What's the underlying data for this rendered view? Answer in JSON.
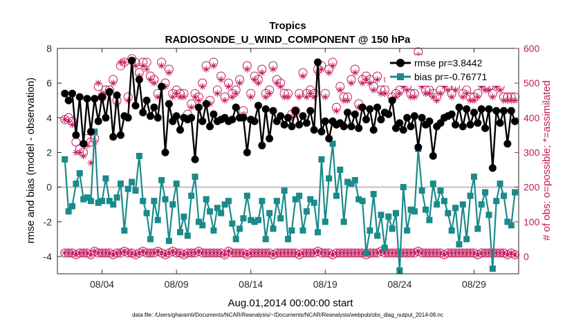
{
  "chart_data": {
    "type": "line",
    "title": "Tropics",
    "subtitle": "RADIOSONDE_U_WIND_COMPONENT @ 150 hPa",
    "xlabel": "Aug.01,2014 00:00:00 start",
    "ylabel": "rmse and bias (model - observation)",
    "y2label": "# of obs: o=possible; *=assimilated",
    "footer": "data file: /Users/gharamti/Documents/NCAR/Reanalysis/~/Documents/NCAR/Reanalysis/webpub/obs_diag_output_2014-08.nc",
    "xlim": [
      0.5,
      31.5
    ],
    "ylim": [
      -5,
      8
    ],
    "y2lim": [
      -50,
      600
    ],
    "xticks": [
      3.5,
      8.5,
      13.5,
      18.5,
      23.5,
      28.5
    ],
    "xtick_labels": [
      "08/04",
      "08/09",
      "08/14",
      "08/19",
      "08/24",
      "08/29"
    ],
    "yticks": [
      -4,
      -2,
      0,
      2,
      4,
      6,
      8
    ],
    "ytick_labels": [
      "-4",
      "-2",
      "0",
      "2",
      "4",
      "6",
      "8"
    ],
    "y2ticks": [
      0,
      100,
      200,
      300,
      400,
      500,
      600
    ],
    "y2tick_labels": [
      "0",
      "100",
      "200",
      "300",
      "400",
      "500",
      "600"
    ],
    "colors": {
      "rmse": "#000000",
      "bias": "#1a8a8a",
      "obs": "#c2185b",
      "zero_line": "#c8bcc4"
    },
    "legend": {
      "location": "top-right",
      "rmse_label": "rmse pr=3.8442",
      "bias_label": "bias pr=-0.76771"
    },
    "x": [
      1.0,
      1.25,
      1.5,
      1.75,
      2.0,
      2.25,
      2.5,
      2.75,
      3.0,
      3.25,
      3.5,
      3.75,
      4.0,
      4.25,
      4.5,
      4.75,
      5.0,
      5.25,
      5.5,
      5.75,
      6.0,
      6.25,
      6.5,
      6.75,
      7.0,
      7.25,
      7.5,
      7.75,
      8.0,
      8.25,
      8.5,
      8.75,
      9.0,
      9.25,
      9.5,
      9.75,
      10.0,
      10.25,
      10.5,
      10.75,
      11.0,
      11.25,
      11.5,
      11.75,
      12.0,
      12.25,
      12.5,
      12.75,
      13.0,
      13.25,
      13.5,
      13.75,
      14.0,
      14.25,
      14.5,
      14.75,
      15.0,
      15.25,
      15.5,
      15.75,
      16.0,
      16.25,
      16.5,
      16.75,
      17.0,
      17.25,
      17.5,
      17.75,
      18.0,
      18.25,
      18.5,
      18.75,
      19.0,
      19.25,
      19.5,
      19.75,
      20.0,
      20.25,
      20.5,
      20.75,
      21.0,
      21.25,
      21.5,
      21.75,
      22.0,
      22.25,
      22.5,
      22.75,
      23.0,
      23.25,
      23.5,
      23.75,
      24.0,
      24.25,
      24.5,
      24.75,
      25.0,
      25.25,
      25.5,
      25.75,
      26.0,
      26.25,
      26.5,
      26.75,
      27.0,
      27.25,
      27.5,
      27.75,
      28.0,
      28.25,
      28.5,
      28.75,
      29.0,
      29.25,
      29.5,
      29.75,
      30.0,
      30.25,
      30.5,
      30.75,
      31.0,
      31.25
    ],
    "rmse": [
      5.4,
      5.0,
      5.4,
      3.0,
      5.2,
      2.5,
      5.1,
      3.2,
      5.1,
      3.8,
      5.2,
      4.0,
      5.5,
      2.9,
      5.3,
      3.0,
      4.1,
      4.0,
      7.3,
      4.7,
      6.2,
      4.3,
      5.0,
      4.1,
      4.6,
      4.0,
      5.8,
      2.0,
      4.8,
      3.8,
      4.1,
      3.3,
      4.0,
      3.9,
      4.0,
      1.6,
      4.6,
      3.8,
      4.8,
      3.5,
      4.2,
      3.8,
      3.9,
      4.0,
      3.8,
      3.9,
      4.6,
      4.0,
      4.0,
      2.0,
      3.9,
      3.8,
      4.7,
      2.4,
      4.5,
      2.8,
      4.4,
      3.8,
      4.1,
      3.6,
      4.0,
      3.5,
      4.4,
      3.6,
      4.1,
      3.7,
      4.4,
      3.3,
      7.2,
      3.2,
      3.8,
      2.8,
      3.8,
      3.6,
      3.7,
      3.5,
      4.3,
      3.5,
      4.2,
      3.4,
      4.6,
      3.9,
      4.5,
      3.3,
      4.6,
      3.9,
      4.3,
      4.2,
      5.0,
      3.4,
      3.7,
      3.3,
      4.0,
      3.5,
      4.1,
      2.3,
      4.0,
      3.6,
      3.8,
      1.8,
      3.5,
      3.7,
      4.0,
      4.1,
      4.2,
      3.6,
      4.6,
      3.5,
      4.5,
      3.6,
      4.3,
      3.7,
      4.5,
      3.4,
      4.5,
      1.1,
      4.4,
      3.7,
      4.4,
      2.5,
      4.4,
      3.8,
      4.3,
      2.5
    ],
    "bias": [
      1.6,
      -1.4,
      -1.1,
      0.2,
      0.8,
      -0.7,
      -0.6,
      -0.8,
      3.2,
      -0.9,
      -0.8,
      0.5,
      -0.8,
      -1.0,
      -0.6,
      0.2,
      -2.5,
      -0.1,
      0.3,
      -0.2,
      1.8,
      -0.8,
      -1.5,
      -3.0,
      -0.8,
      -1.9,
      0.4,
      -0.7,
      -3.1,
      -1.0,
      0.2,
      -2.6,
      -1.7,
      -2.8,
      -0.5,
      0.6,
      -2.0,
      -2.2,
      -0.7,
      -1.4,
      -2.5,
      -1.2,
      -1.5,
      -1.0,
      -0.8,
      -2.1,
      -3.0,
      -2.4,
      -1.8,
      -0.5,
      -1.9,
      -2.0,
      -1.9,
      -0.8,
      -3.0,
      -1.5,
      -2.4,
      -0.8,
      -1.8,
      -0.2,
      -3.0,
      -2.5,
      -0.7,
      -0.5,
      -2.5,
      -1.4,
      -0.7,
      -0.9,
      -2.6,
      1.6,
      -2.0,
      0.5,
      2.5,
      -0.5,
      1.0,
      -2.0,
      0.3,
      0.2,
      0.4,
      -0.7,
      -0.8,
      -3.8,
      -2.5,
      -0.4,
      -2.8,
      -1.6,
      -3.5,
      -1.7,
      -2.4,
      -1.5,
      -4.8,
      0.0,
      -2.5,
      -1.3,
      -1.4,
      2.2,
      -0.2,
      -1.3,
      -1.9,
      0.2,
      -1.0,
      -0.2,
      -0.8,
      -1.5,
      -2.5,
      -1.2,
      -3.3,
      -1.0,
      -3.0,
      -0.5,
      0.6,
      -2.4,
      -1.0,
      -0.3,
      -1.6,
      -4.7,
      -0.8,
      0.2,
      -0.5,
      -2.0,
      -2.2,
      -0.3,
      0.2,
      0.4
    ],
    "possible": [
      395,
      400,
      390,
      330,
      310,
      300,
      340,
      330,
      340,
      490,
      460,
      480,
      480,
      510,
      450,
      550,
      560,
      460,
      570,
      560,
      530,
      560,
      560,
      520,
      510,
      470,
      560,
      500,
      540,
      470,
      480,
      470,
      470,
      410,
      440,
      470,
      460,
      500,
      550,
      450,
      560,
      480,
      520,
      460,
      500,
      470,
      480,
      510,
      420,
      550,
      470,
      520,
      510,
      540,
      470,
      480,
      550,
      510,
      500,
      470,
      470,
      410,
      420,
      470,
      530,
      470,
      480,
      470,
      540,
      550,
      470,
      540,
      560,
      430,
      490,
      460,
      460,
      510,
      540,
      440,
      510,
      520,
      510,
      490,
      520,
      480,
      480,
      510,
      460,
      470,
      480,
      500,
      490,
      470,
      470,
      590,
      500,
      480,
      480,
      470,
      460,
      480,
      500,
      490,
      470,
      490,
      510,
      470,
      480,
      460,
      460,
      470,
      500,
      490,
      490,
      470,
      500,
      490,
      460,
      460,
      460,
      460,
      460,
      450
    ],
    "assimilated": [
      395,
      390,
      380,
      300,
      300,
      290,
      320,
      270,
      330,
      500,
      470,
      470,
      470,
      500,
      440,
      560,
      560,
      450,
      560,
      550,
      520,
      550,
      540,
      510,
      500,
      460,
      550,
      490,
      530,
      460,
      470,
      460,
      460,
      400,
      430,
      460,
      450,
      490,
      540,
      440,
      550,
      470,
      510,
      450,
      490,
      460,
      470,
      500,
      410,
      540,
      460,
      510,
      500,
      530,
      460,
      470,
      540,
      500,
      490,
      460,
      460,
      400,
      410,
      460,
      520,
      460,
      470,
      460,
      530,
      540,
      460,
      530,
      550,
      420,
      480,
      450,
      450,
      500,
      530,
      430,
      500,
      510,
      500,
      480,
      510,
      470,
      470,
      500,
      450,
      460,
      470,
      490,
      480,
      460,
      460,
      580,
      490,
      470,
      470,
      460,
      450,
      470,
      490,
      480,
      460,
      480,
      500,
      460,
      470,
      450,
      450,
      460,
      490,
      480,
      480,
      460,
      490,
      480,
      450,
      450,
      450,
      450,
      450,
      440
    ],
    "possible_low": [
      10,
      10,
      10,
      5,
      10,
      10,
      10,
      5,
      15,
      10,
      10,
      10,
      10,
      5,
      10,
      10,
      15,
      10,
      10,
      5,
      10,
      15,
      10,
      10,
      10,
      15,
      10,
      5,
      10,
      15,
      10,
      10,
      5,
      10,
      10,
      10,
      15,
      10,
      10,
      10,
      10,
      10,
      10,
      5,
      15,
      10,
      10,
      10,
      10,
      5,
      10,
      10,
      10,
      10,
      10,
      10,
      5,
      10,
      10,
      10,
      10,
      10,
      10,
      5,
      10,
      10,
      10,
      10,
      15,
      10,
      10,
      10,
      5,
      10,
      10,
      10,
      10,
      10,
      10,
      10,
      10,
      5,
      10,
      10,
      10,
      15,
      10,
      10,
      10,
      10,
      10,
      10,
      10,
      10,
      10,
      15,
      10,
      10,
      10,
      10,
      10,
      10,
      5,
      10,
      10,
      10,
      10,
      10,
      10,
      10,
      10,
      5,
      10,
      10,
      10,
      10,
      10,
      10,
      10,
      5,
      10,
      5,
      0,
      0
    ],
    "assimilated_low": [
      10,
      10,
      10,
      5,
      10,
      10,
      10,
      5,
      15,
      10,
      10,
      10,
      10,
      5,
      10,
      10,
      15,
      10,
      10,
      5,
      10,
      15,
      10,
      10,
      10,
      15,
      10,
      5,
      10,
      15,
      10,
      10,
      5,
      10,
      10,
      10,
      15,
      10,
      10,
      10,
      10,
      10,
      10,
      5,
      15,
      10,
      10,
      10,
      10,
      5,
      10,
      10,
      10,
      10,
      10,
      10,
      5,
      10,
      10,
      10,
      10,
      10,
      10,
      5,
      10,
      10,
      10,
      10,
      15,
      10,
      10,
      10,
      5,
      10,
      10,
      10,
      10,
      10,
      10,
      10,
      10,
      5,
      10,
      10,
      10,
      15,
      10,
      10,
      10,
      10,
      10,
      10,
      10,
      10,
      10,
      15,
      10,
      10,
      10,
      10,
      10,
      10,
      5,
      10,
      10,
      10,
      10,
      10,
      10,
      10,
      10,
      5,
      10,
      10,
      10,
      10,
      10,
      10,
      10,
      5,
      10,
      5,
      0,
      0
    ]
  }
}
